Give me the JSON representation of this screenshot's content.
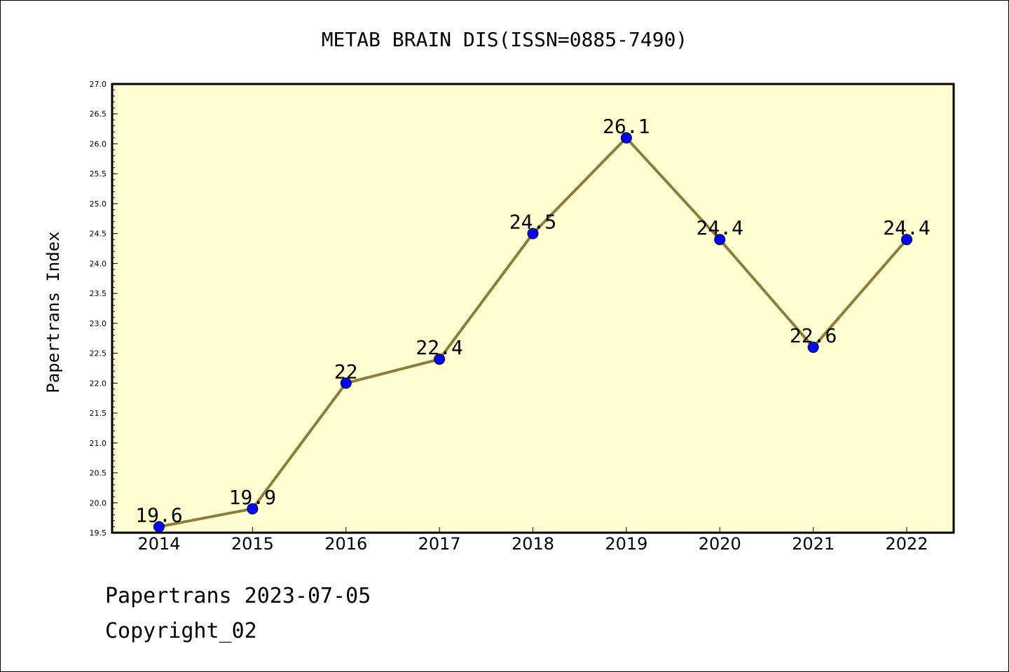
{
  "chart_data": {
    "type": "line",
    "title": "METAB BRAIN DIS(ISSN=0885-7490)",
    "xlabel": "",
    "ylabel": "Papertrans Index",
    "categories": [
      "2014",
      "2015",
      "2016",
      "2017",
      "2018",
      "2019",
      "2020",
      "2021",
      "2022"
    ],
    "series": [
      {
        "values": [
          19.6,
          19.9,
          22,
          22.4,
          24.5,
          26.1,
          24.4,
          22.6,
          24.4
        ],
        "labels": [
          "19.6",
          "19.9",
          "22",
          "22.4",
          "24.5",
          "26.1",
          "24.4",
          "22.6",
          "24.4"
        ]
      }
    ],
    "ylim": [
      19.5,
      27.0
    ],
    "yticks": [
      "19.5",
      "20.0",
      "20.5",
      "21.0",
      "21.5",
      "22.0",
      "22.5",
      "23.0",
      "23.5",
      "24.0",
      "24.5",
      "25.0",
      "25.5",
      "26.0",
      "26.5",
      "27.0"
    ],
    "grid": false,
    "colors": {
      "plot_background": "#ffffd2",
      "line": "#8b7d3a",
      "marker": "#0000ff"
    }
  },
  "footer": {
    "line1": "Papertrans 2023-07-05",
    "line2": "Copyright_02"
  }
}
